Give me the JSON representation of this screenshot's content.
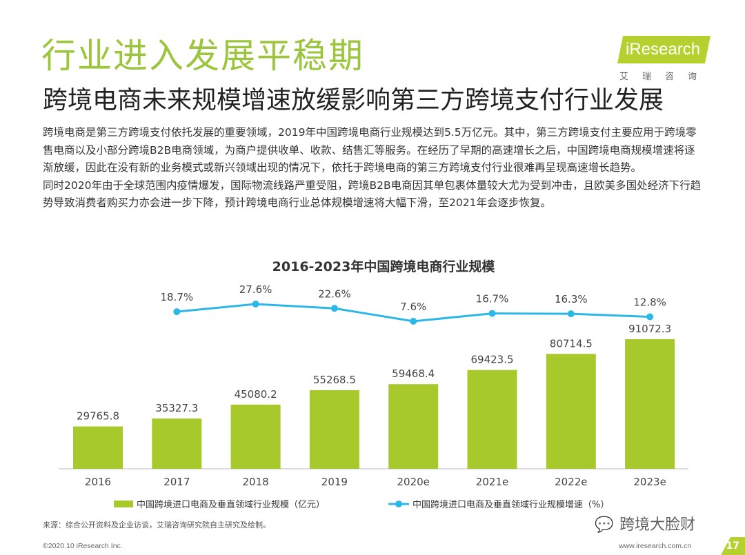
{
  "header": {
    "title": "行业进入发展平稳期",
    "subtitle": "跨境电商未来规模增速放缓影响第三方跨境支付行业发展"
  },
  "logo": {
    "text": "iResearch",
    "cn": "艾瑞咨询",
    "color": "#b6d12f"
  },
  "body": {
    "p1": "跨境电商是第三方跨境支付依托发展的重要领域，2019年中国跨境电商行业规模达到5.5万亿元。其中，第三方跨境支付主要应用于跨境零售电商以及小部分跨境B2B电商领域，为商户提供收单、收款、结售汇等服务。在经历了早期的高速增长之后，中国跨境电商规模增速将逐渐放缓，因此在没有新的业务模式或新兴领域出现的情况下，依托于跨境电商的第三方跨境支付行业很难再呈现高速增长趋势。",
    "p2": "同时2020年由于全球范围内疫情爆发，国际物流线路严重受阻，跨境B2B电商因其单包裹体量较大尤为受到冲击，且欧美多国处经济下行趋势导致消费者购买力亦会进一步下降，预计跨境电商行业总体规模增速将大幅下滑，至2021年会逐步恢复。"
  },
  "chart_data": {
    "type": "bar",
    "title": "2016-2023年中国跨境电商行业规模",
    "categories": [
      "2016",
      "2017",
      "2018",
      "2019",
      "2020e",
      "2021e",
      "2022e",
      "2023e"
    ],
    "series": [
      {
        "name": "中国跨境进口电商及垂直领域行业规模（亿元）",
        "type": "bar",
        "color": "#a8c92c",
        "values": [
          29765.8,
          35327.3,
          45080.2,
          55268.5,
          59468.4,
          69423.5,
          80714.5,
          91072.3
        ],
        "labels": [
          "29765.8",
          "35327.3",
          "45080.2",
          "55268.5",
          "59468.4",
          "69423.5",
          "80714.5",
          "91072.3"
        ]
      },
      {
        "name": "中国跨境进口电商及垂直领域行业规模增速（%）",
        "type": "line",
        "color": "#2bb7e8",
        "values": [
          null,
          18.7,
          27.6,
          22.6,
          7.6,
          16.7,
          16.3,
          12.8
        ],
        "labels": [
          "",
          "18.7%",
          "27.6%",
          "22.6%",
          "7.6%",
          "16.7%",
          "16.3%",
          "12.8%"
        ]
      }
    ],
    "ylim": [
      0,
      100000
    ],
    "growth_range": [
      7.6,
      27.6
    ],
    "axis_color": "#bbbbbb",
    "label_color": "#444444",
    "legend_position": "bottom"
  },
  "source": "来源：综合公开资料及企业访谈，艾瑞咨询研究院自主研究及绘制。",
  "footer": {
    "copyright": "©2020.10 iResearch Inc.",
    "website": "www.iresearch.com.cn",
    "page": "17"
  },
  "watermark": "跨境大脸财"
}
